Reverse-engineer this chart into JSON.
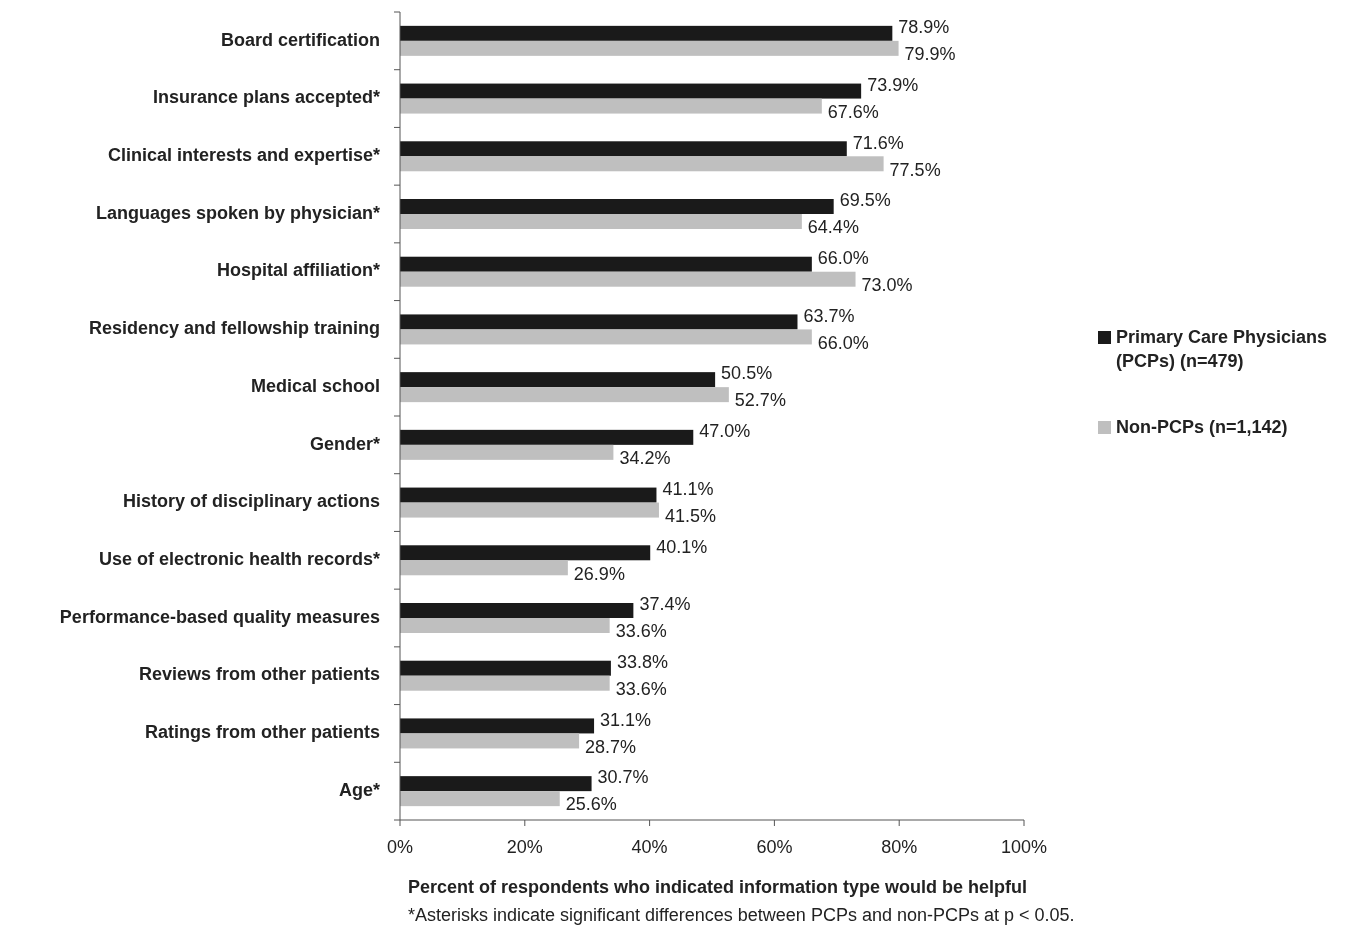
{
  "chart_data": {
    "type": "bar",
    "orientation": "horizontal",
    "categories": [
      "Board certification",
      "Insurance plans accepted*",
      "Clinical interests and expertise*",
      "Languages spoken by physician*",
      "Hospital affiliation*",
      "Residency and fellowship training",
      "Medical school",
      "Gender*",
      "History of disciplinary actions",
      "Use of electronic health records*",
      "Performance-based quality measures",
      "Reviews from other patients",
      "Ratings from other patients",
      "Age*"
    ],
    "series": [
      {
        "name": "Primary Care Physicians (PCPs) (n=479)",
        "color": "#1a1a1a",
        "values": [
          78.9,
          73.9,
          71.6,
          69.5,
          66.0,
          63.7,
          50.5,
          47.0,
          41.1,
          40.1,
          37.4,
          33.8,
          31.1,
          30.7
        ],
        "value_labels": [
          "78.9%",
          "73.9%",
          "71.6%",
          "69.5%",
          "66.0%",
          "63.7%",
          "50.5%",
          "47.0%",
          "41.1%",
          "40.1%",
          "37.4%",
          "33.8%",
          "31.1%",
          "30.7%"
        ]
      },
      {
        "name": "Non-PCPs (n=1,142)",
        "color": "#bfbfbf",
        "values": [
          79.9,
          67.6,
          77.5,
          64.4,
          73.0,
          66.0,
          52.7,
          34.2,
          41.5,
          26.9,
          33.6,
          33.6,
          28.7,
          25.6
        ],
        "value_labels": [
          "79.9%",
          "67.6%",
          "77.5%",
          "64.4%",
          "73.0%",
          "66.0%",
          "52.7%",
          "34.2%",
          "41.5%",
          "26.9%",
          "33.6%",
          "33.6%",
          "28.7%",
          "25.6%"
        ]
      }
    ],
    "xlim": [
      0,
      100
    ],
    "xticks": [
      {
        "value": 0,
        "label": "0%"
      },
      {
        "value": 20,
        "label": "20%"
      },
      {
        "value": 40,
        "label": "40%"
      },
      {
        "value": 60,
        "label": "60%"
      },
      {
        "value": 80,
        "label": "80%"
      },
      {
        "value": 100,
        "label": "100%"
      }
    ],
    "xlabel": "Percent of respondents who indicated information type would be helpful",
    "annotations": [
      "*Asterisks indicate significant differences between PCPs and non-PCPs at p < 0.05."
    ],
    "legend": "right",
    "grid": false
  }
}
